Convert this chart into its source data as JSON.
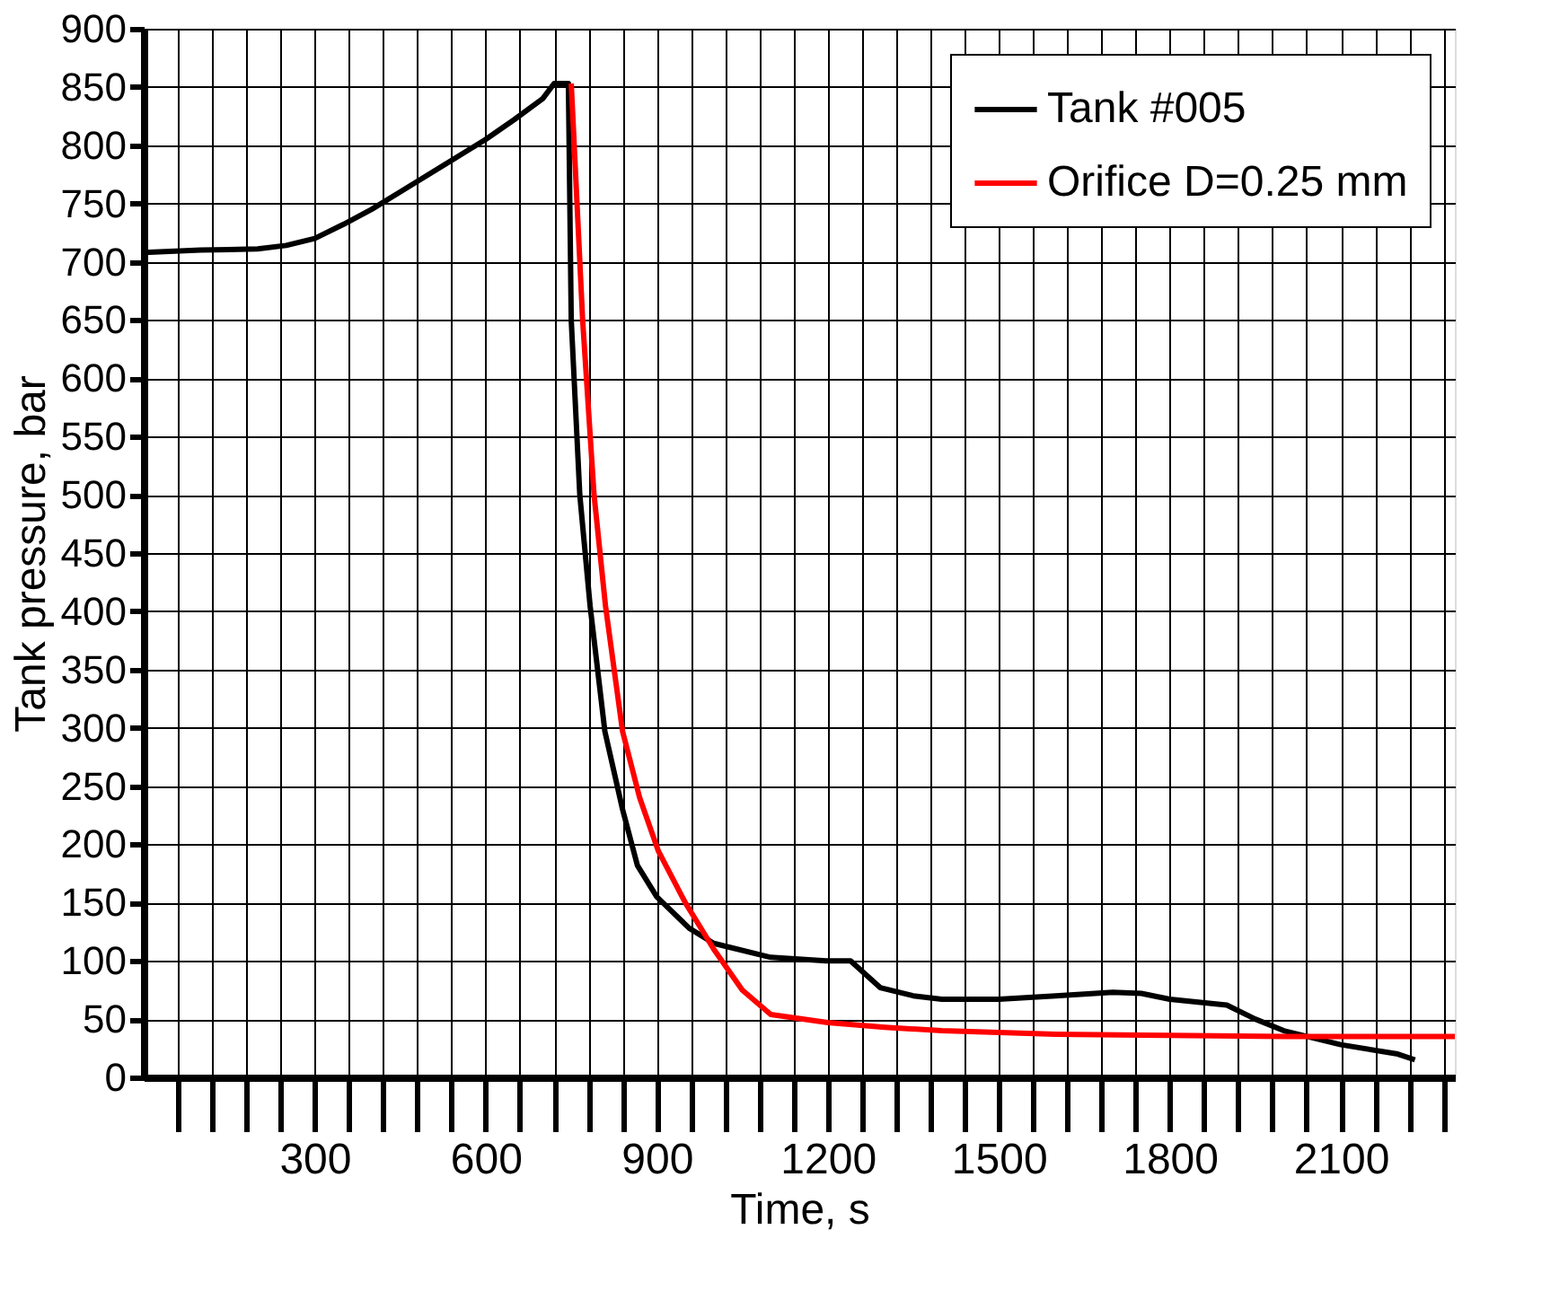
{
  "chart_data": {
    "type": "line",
    "xlabel": "Time, s",
    "ylabel": "Tank pressure, bar",
    "xlim": [
      0,
      2300
    ],
    "ylim": [
      0,
      900
    ],
    "xticks": [
      {
        "value": 60,
        "label": null
      },
      {
        "value": 120,
        "label": null
      },
      {
        "value": 180,
        "label": null
      },
      {
        "value": 240,
        "label": null
      },
      300,
      {
        "value": 360,
        "label": null
      },
      {
        "value": 420,
        "label": null
      },
      {
        "value": 480,
        "label": null
      },
      {
        "value": 540,
        "label": null
      },
      600,
      {
        "value": 660,
        "label": null
      },
      {
        "value": 720,
        "label": null
      },
      {
        "value": 780,
        "label": null
      },
      {
        "value": 840,
        "label": null
      },
      900,
      {
        "value": 960,
        "label": null
      },
      {
        "value": 1020,
        "label": null
      },
      {
        "value": 1080,
        "label": null
      },
      {
        "value": 1140,
        "label": null
      },
      1200,
      {
        "value": 1260,
        "label": null
      },
      {
        "value": 1320,
        "label": null
      },
      {
        "value": 1380,
        "label": null
      },
      {
        "value": 1440,
        "label": null
      },
      1500,
      {
        "value": 1560,
        "label": null
      },
      {
        "value": 1620,
        "label": null
      },
      {
        "value": 1680,
        "label": null
      },
      {
        "value": 1740,
        "label": null
      },
      1800,
      {
        "value": 1860,
        "label": null
      },
      {
        "value": 1920,
        "label": null
      },
      {
        "value": 1980,
        "label": null
      },
      {
        "value": 2040,
        "label": null
      },
      2100,
      {
        "value": 2160,
        "label": null
      },
      {
        "value": 2220,
        "label": null
      },
      {
        "value": 2280,
        "label": null
      }
    ],
    "yticks": [
      0,
      50,
      100,
      150,
      200,
      250,
      300,
      350,
      400,
      450,
      500,
      550,
      600,
      650,
      700,
      750,
      800,
      850,
      900
    ],
    "grid": true,
    "legend": "top right",
    "marker": "none",
    "line_style": "solid",
    "series": [
      {
        "name": "Tank #005",
        "color": "#000000",
        "x": [
          0,
          100,
          200,
          250,
          300,
          350,
          400,
          450,
          500,
          550,
          600,
          650,
          700,
          720,
          745,
          750,
          765,
          783,
          809,
          840,
          866,
          900,
          957,
          1000,
          1100,
          1197,
          1240,
          1292,
          1350,
          1400,
          1500,
          1600,
          1700,
          1750,
          1800,
          1900,
          1950,
          2000,
          2100,
          2200,
          2230
        ],
        "values": [
          708,
          710,
          711,
          714,
          720,
          732,
          745,
          760,
          775,
          790,
          805,
          822,
          840,
          853,
          853,
          650,
          500,
          405,
          297,
          230,
          182,
          155,
          128,
          115,
          103,
          100,
          100,
          77,
          70,
          67,
          67,
          70,
          73,
          72,
          67,
          62,
          50,
          40,
          28,
          20,
          15
        ]
      },
      {
        "name": "Orifice D=0.25 mm",
        "color": "#ff0000",
        "x": [
          750,
          770,
          790,
          810,
          840,
          870,
          903,
          950,
          1000,
          1050,
          1100,
          1200,
          1300,
          1400,
          1600,
          1800,
          2000,
          2300
        ],
        "values": [
          853,
          650,
          500,
          405,
          297,
          240,
          194,
          150,
          110,
          75,
          54,
          47,
          43,
          40,
          37,
          36,
          35,
          35
        ]
      }
    ]
  }
}
